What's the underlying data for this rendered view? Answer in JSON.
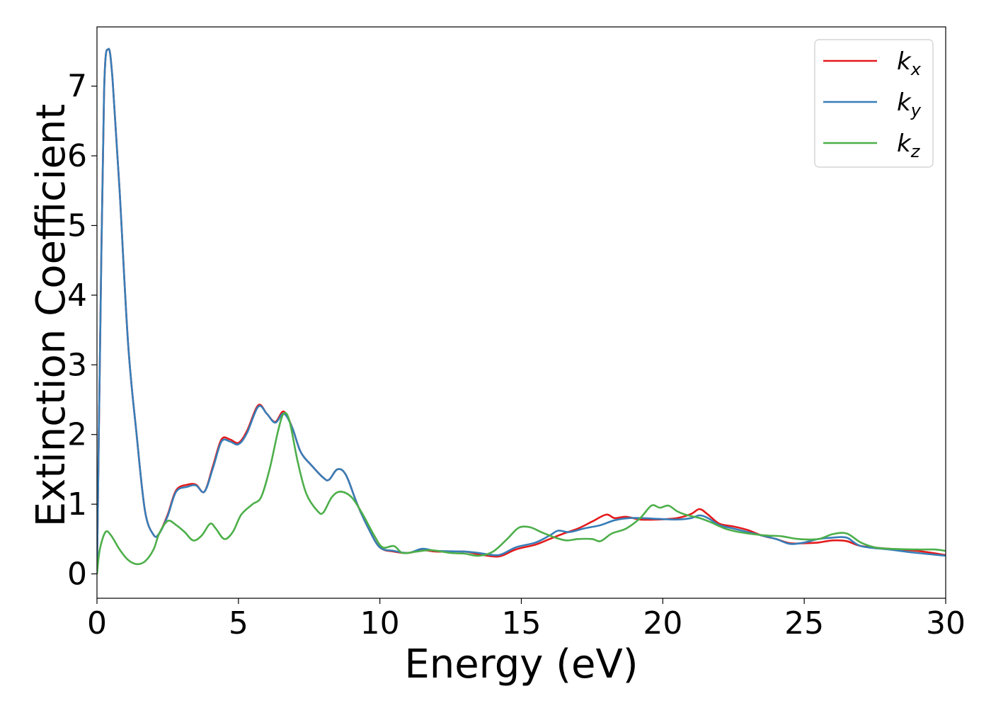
{
  "chart_data": {
    "type": "line",
    "xlabel": "Energy (eV)",
    "ylabel": "Extinction Coefficient",
    "xlim": [
      0,
      30
    ],
    "ylim": [
      -0.35,
      7.85
    ],
    "xticks": [
      0,
      5,
      10,
      15,
      20,
      25,
      30
    ],
    "yticks": [
      0,
      1,
      2,
      3,
      4,
      5,
      6,
      7
    ],
    "grid": false,
    "legend_position": "top-right",
    "series": [
      {
        "name": "k_x",
        "label_main": "k",
        "label_sub": "x",
        "color": "#e41a1c",
        "points": [
          [
            0,
            0
          ],
          [
            0.1,
            3.0
          ],
          [
            0.25,
            6.9
          ],
          [
            0.4,
            7.53
          ],
          [
            0.55,
            7.1
          ],
          [
            0.8,
            5.5
          ],
          [
            1.1,
            3.3
          ],
          [
            1.4,
            2.0
          ],
          [
            1.7,
            0.9
          ],
          [
            2.0,
            0.56
          ],
          [
            2.2,
            0.58
          ],
          [
            2.5,
            0.85
          ],
          [
            2.8,
            1.2
          ],
          [
            3.2,
            1.28
          ],
          [
            3.5,
            1.28
          ],
          [
            3.8,
            1.18
          ],
          [
            4.1,
            1.55
          ],
          [
            4.4,
            1.93
          ],
          [
            4.7,
            1.93
          ],
          [
            5.0,
            1.88
          ],
          [
            5.3,
            2.05
          ],
          [
            5.7,
            2.42
          ],
          [
            6.0,
            2.3
          ],
          [
            6.3,
            2.18
          ],
          [
            6.6,
            2.33
          ],
          [
            6.9,
            2.1
          ],
          [
            7.2,
            1.75
          ],
          [
            7.6,
            1.55
          ],
          [
            8.0,
            1.38
          ],
          [
            8.2,
            1.35
          ],
          [
            8.5,
            1.5
          ],
          [
            8.8,
            1.42
          ],
          [
            9.2,
            1.0
          ],
          [
            9.6,
            0.65
          ],
          [
            10.0,
            0.38
          ],
          [
            10.5,
            0.32
          ],
          [
            11.0,
            0.3
          ],
          [
            11.5,
            0.34
          ],
          [
            12.0,
            0.32
          ],
          [
            13.0,
            0.32
          ],
          [
            13.5,
            0.28
          ],
          [
            14.2,
            0.25
          ],
          [
            14.8,
            0.35
          ],
          [
            15.5,
            0.42
          ],
          [
            16.0,
            0.5
          ],
          [
            16.5,
            0.58
          ],
          [
            17.0,
            0.65
          ],
          [
            17.5,
            0.75
          ],
          [
            18.0,
            0.85
          ],
          [
            18.3,
            0.8
          ],
          [
            18.7,
            0.82
          ],
          [
            19.2,
            0.78
          ],
          [
            19.8,
            0.78
          ],
          [
            20.5,
            0.8
          ],
          [
            21.0,
            0.86
          ],
          [
            21.3,
            0.93
          ],
          [
            21.6,
            0.85
          ],
          [
            22.0,
            0.72
          ],
          [
            22.5,
            0.68
          ],
          [
            23.0,
            0.63
          ],
          [
            23.5,
            0.55
          ],
          [
            24.0,
            0.5
          ],
          [
            24.5,
            0.44
          ],
          [
            25.0,
            0.44
          ],
          [
            25.5,
            0.45
          ],
          [
            26.0,
            0.48
          ],
          [
            26.5,
            0.47
          ],
          [
            27.0,
            0.4
          ],
          [
            28.0,
            0.36
          ],
          [
            29.0,
            0.33
          ],
          [
            30.0,
            0.27
          ]
        ]
      },
      {
        "name": "k_y",
        "label_main": "k",
        "label_sub": "y",
        "color": "#377eb8",
        "points": [
          [
            0,
            0
          ],
          [
            0.1,
            3.0
          ],
          [
            0.25,
            6.9
          ],
          [
            0.4,
            7.53
          ],
          [
            0.55,
            7.1
          ],
          [
            0.8,
            5.5
          ],
          [
            1.1,
            3.3
          ],
          [
            1.4,
            2.0
          ],
          [
            1.7,
            0.9
          ],
          [
            2.0,
            0.56
          ],
          [
            2.2,
            0.58
          ],
          [
            2.5,
            0.83
          ],
          [
            2.8,
            1.18
          ],
          [
            3.2,
            1.25
          ],
          [
            3.5,
            1.27
          ],
          [
            3.8,
            1.18
          ],
          [
            4.1,
            1.52
          ],
          [
            4.4,
            1.9
          ],
          [
            4.7,
            1.9
          ],
          [
            5.0,
            1.86
          ],
          [
            5.3,
            2.02
          ],
          [
            5.7,
            2.4
          ],
          [
            6.0,
            2.3
          ],
          [
            6.3,
            2.17
          ],
          [
            6.6,
            2.3
          ],
          [
            6.9,
            2.1
          ],
          [
            7.2,
            1.75
          ],
          [
            7.6,
            1.55
          ],
          [
            8.0,
            1.38
          ],
          [
            8.2,
            1.35
          ],
          [
            8.5,
            1.5
          ],
          [
            8.8,
            1.42
          ],
          [
            9.2,
            1.0
          ],
          [
            9.6,
            0.65
          ],
          [
            10.0,
            0.38
          ],
          [
            10.5,
            0.33
          ],
          [
            11.0,
            0.3
          ],
          [
            11.5,
            0.36
          ],
          [
            12.0,
            0.33
          ],
          [
            13.0,
            0.32
          ],
          [
            13.5,
            0.3
          ],
          [
            14.2,
            0.27
          ],
          [
            14.8,
            0.38
          ],
          [
            15.5,
            0.45
          ],
          [
            16.0,
            0.55
          ],
          [
            16.3,
            0.62
          ],
          [
            16.7,
            0.6
          ],
          [
            17.2,
            0.65
          ],
          [
            17.8,
            0.7
          ],
          [
            18.3,
            0.77
          ],
          [
            18.8,
            0.8
          ],
          [
            19.3,
            0.8
          ],
          [
            19.8,
            0.79
          ],
          [
            20.5,
            0.78
          ],
          [
            21.0,
            0.8
          ],
          [
            21.3,
            0.84
          ],
          [
            21.6,
            0.8
          ],
          [
            22.0,
            0.7
          ],
          [
            22.5,
            0.65
          ],
          [
            23.0,
            0.6
          ],
          [
            23.5,
            0.55
          ],
          [
            24.0,
            0.5
          ],
          [
            24.5,
            0.43
          ],
          [
            25.0,
            0.45
          ],
          [
            25.5,
            0.5
          ],
          [
            26.0,
            0.52
          ],
          [
            26.5,
            0.52
          ],
          [
            27.0,
            0.4
          ],
          [
            28.0,
            0.35
          ],
          [
            29.0,
            0.3
          ],
          [
            30.0,
            0.26
          ]
        ]
      },
      {
        "name": "k_z",
        "label_main": "k",
        "label_sub": "z",
        "color": "#4daf4a",
        "points": [
          [
            0,
            0
          ],
          [
            0.1,
            0.35
          ],
          [
            0.3,
            0.6
          ],
          [
            0.5,
            0.55
          ],
          [
            0.8,
            0.35
          ],
          [
            1.1,
            0.2
          ],
          [
            1.4,
            0.14
          ],
          [
            1.7,
            0.18
          ],
          [
            2.0,
            0.35
          ],
          [
            2.2,
            0.58
          ],
          [
            2.5,
            0.76
          ],
          [
            2.8,
            0.7
          ],
          [
            3.1,
            0.6
          ],
          [
            3.4,
            0.48
          ],
          [
            3.7,
            0.55
          ],
          [
            4.0,
            0.72
          ],
          [
            4.2,
            0.65
          ],
          [
            4.5,
            0.5
          ],
          [
            4.8,
            0.6
          ],
          [
            5.1,
            0.85
          ],
          [
            5.5,
            1.0
          ],
          [
            5.8,
            1.1
          ],
          [
            6.1,
            1.5
          ],
          [
            6.4,
            2.05
          ],
          [
            6.6,
            2.3
          ],
          [
            6.8,
            2.2
          ],
          [
            7.1,
            1.6
          ],
          [
            7.4,
            1.15
          ],
          [
            7.8,
            0.9
          ],
          [
            8.0,
            0.88
          ],
          [
            8.3,
            1.1
          ],
          [
            8.6,
            1.18
          ],
          [
            9.0,
            1.1
          ],
          [
            9.4,
            0.85
          ],
          [
            9.8,
            0.55
          ],
          [
            10.1,
            0.38
          ],
          [
            10.5,
            0.4
          ],
          [
            10.8,
            0.3
          ],
          [
            11.3,
            0.32
          ],
          [
            11.8,
            0.34
          ],
          [
            12.5,
            0.3
          ],
          [
            13.0,
            0.29
          ],
          [
            13.5,
            0.26
          ],
          [
            14.0,
            0.32
          ],
          [
            14.5,
            0.5
          ],
          [
            14.9,
            0.66
          ],
          [
            15.3,
            0.67
          ],
          [
            15.7,
            0.6
          ],
          [
            16.2,
            0.52
          ],
          [
            16.6,
            0.48
          ],
          [
            17.0,
            0.5
          ],
          [
            17.5,
            0.5
          ],
          [
            17.8,
            0.47
          ],
          [
            18.2,
            0.58
          ],
          [
            18.7,
            0.65
          ],
          [
            19.2,
            0.8
          ],
          [
            19.6,
            0.98
          ],
          [
            19.9,
            0.95
          ],
          [
            20.2,
            0.98
          ],
          [
            20.5,
            0.9
          ],
          [
            20.8,
            0.85
          ],
          [
            21.3,
            0.8
          ],
          [
            21.7,
            0.74
          ],
          [
            22.2,
            0.65
          ],
          [
            22.7,
            0.6
          ],
          [
            23.2,
            0.57
          ],
          [
            23.7,
            0.55
          ],
          [
            24.2,
            0.54
          ],
          [
            24.8,
            0.5
          ],
          [
            25.5,
            0.5
          ],
          [
            26.0,
            0.57
          ],
          [
            26.5,
            0.58
          ],
          [
            27.0,
            0.45
          ],
          [
            27.5,
            0.38
          ],
          [
            28.0,
            0.36
          ],
          [
            29.0,
            0.35
          ],
          [
            29.6,
            0.35
          ],
          [
            30.0,
            0.33
          ]
        ]
      }
    ]
  }
}
